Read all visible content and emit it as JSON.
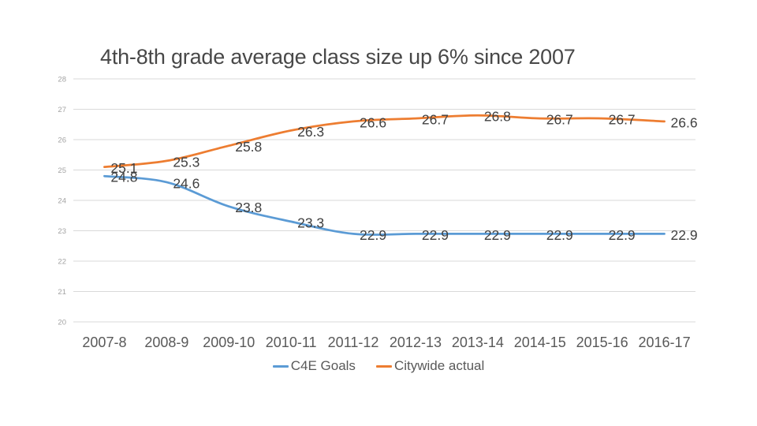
{
  "slide": {
    "background": "#ffffff"
  },
  "chart_data": {
    "type": "line",
    "title": "4th-8th grade average class size up 6% since 2007",
    "categories": [
      "2007-8",
      "2008-9",
      "2009-10",
      "2010-11",
      "2011-12",
      "2012-13",
      "2013-14",
      "2014-15",
      "2015-16",
      "2016-17"
    ],
    "series": [
      {
        "name": "C4E Goals",
        "color": "#5b9bd5",
        "values": [
          24.8,
          24.6,
          23.8,
          23.3,
          22.9,
          22.9,
          22.9,
          22.9,
          22.9,
          22.9
        ]
      },
      {
        "name": "Citywide actual",
        "color": "#ed7d31",
        "values": [
          25.1,
          25.3,
          25.8,
          26.3,
          26.6,
          26.7,
          26.8,
          26.7,
          26.7,
          26.6
        ]
      }
    ],
    "y_axis": {
      "min": 20,
      "max": 28,
      "step": 1,
      "tick_labels": [
        "20",
        "21",
        "22",
        "23",
        "24",
        "25",
        "26",
        "27",
        "28"
      ]
    },
    "data_labels": true,
    "smooth": true,
    "grid": "horizontal",
    "legend_position": "bottom",
    "style": {
      "gridline_color": "#d9d9d9",
      "title_color": "#484848",
      "x_axis_text_color": "#595959",
      "y_axis_text_color": "#a3a3a3",
      "data_label_color": "#404040",
      "legend_text_color": "#595959"
    }
  }
}
